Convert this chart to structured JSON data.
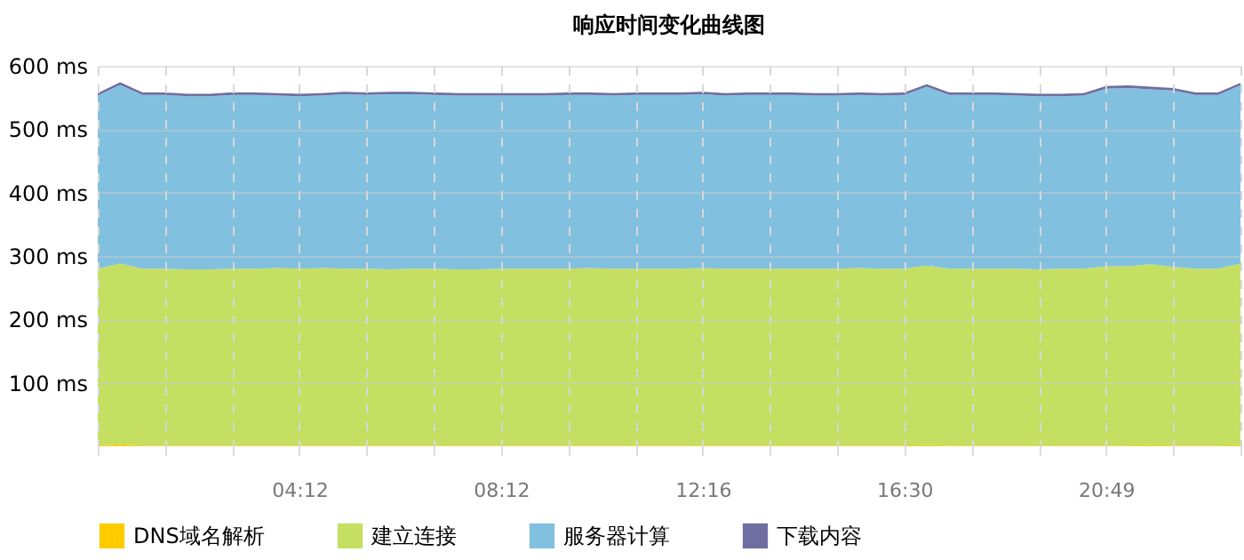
{
  "chart_data": {
    "type": "area",
    "stacked": true,
    "title": "响应时间变化曲线图",
    "categories": [
      null,
      null,
      null,
      null,
      null,
      null,
      null,
      null,
      null,
      "04:12",
      null,
      null,
      null,
      null,
      null,
      null,
      null,
      null,
      "08:12",
      null,
      null,
      null,
      null,
      null,
      null,
      null,
      null,
      "12:16",
      null,
      null,
      null,
      null,
      null,
      null,
      null,
      null,
      "16:30",
      null,
      null,
      null,
      null,
      null,
      null,
      null,
      null,
      "20:49",
      null,
      null,
      null,
      null,
      null,
      null
    ],
    "series": [
      {
        "name": "DNS域名解析",
        "color": "#ffcc00",
        "values": [
          1,
          3,
          1,
          1,
          1,
          1,
          1,
          1,
          1,
          1,
          1,
          1,
          1,
          1,
          1,
          1,
          1,
          1,
          1,
          1,
          1,
          1,
          1,
          1,
          1,
          1,
          1,
          1,
          1,
          1,
          1,
          1,
          1,
          1,
          1,
          1,
          1,
          2,
          1,
          1,
          1,
          1,
          1,
          1,
          1,
          1,
          1,
          2,
          1,
          1,
          1,
          2
        ]
      },
      {
        "name": "建立连接",
        "color": "#c4df62",
        "values": [
          279,
          285,
          279,
          279,
          278,
          278,
          279,
          279,
          280,
          279,
          280,
          279,
          279,
          278,
          279,
          279,
          278,
          278,
          279,
          279,
          279,
          279,
          280,
          279,
          279,
          279,
          279,
          280,
          279,
          279,
          279,
          279,
          279,
          279,
          280,
          279,
          279,
          283,
          279,
          279,
          279,
          279,
          278,
          279,
          279,
          283,
          283,
          285,
          282,
          279,
          279,
          286
        ]
      },
      {
        "name": "服务器计算",
        "color": "#82c0df",
        "values": [
          273,
          282,
          274,
          274,
          273,
          273,
          274,
          274,
          272,
          272,
          272,
          275,
          274,
          276,
          275,
          274,
          274,
          274,
          273,
          273,
          273,
          274,
          273,
          273,
          274,
          274,
          274,
          274,
          273,
          274,
          274,
          274,
          273,
          273,
          273,
          273,
          274,
          282,
          274,
          274,
          274,
          273,
          273,
          272,
          273,
          280,
          281,
          276,
          278,
          274,
          274,
          281
        ]
      },
      {
        "name": "下载内容",
        "color": "#6f6ea0",
        "values": [
          4,
          4,
          4,
          4,
          4,
          4,
          4,
          4,
          4,
          4,
          4,
          4,
          4,
          4,
          4,
          4,
          4,
          4,
          4,
          4,
          4,
          4,
          4,
          4,
          4,
          4,
          4,
          4,
          4,
          4,
          4,
          4,
          4,
          4,
          4,
          4,
          4,
          4,
          4,
          4,
          4,
          4,
          4,
          4,
          4,
          4,
          4,
          4,
          4,
          4,
          4,
          4
        ]
      }
    ],
    "ylim": [
      0,
      600
    ],
    "yticks": [
      {
        "value": 100,
        "label": "100 ms"
      },
      {
        "value": 200,
        "label": "200 ms"
      },
      {
        "value": 300,
        "label": "300 ms"
      },
      {
        "value": 400,
        "label": "400 ms"
      },
      {
        "value": 500,
        "label": "500 ms"
      },
      {
        "value": 600,
        "label": "600 ms"
      }
    ],
    "grid": true,
    "legend": "bottom"
  }
}
